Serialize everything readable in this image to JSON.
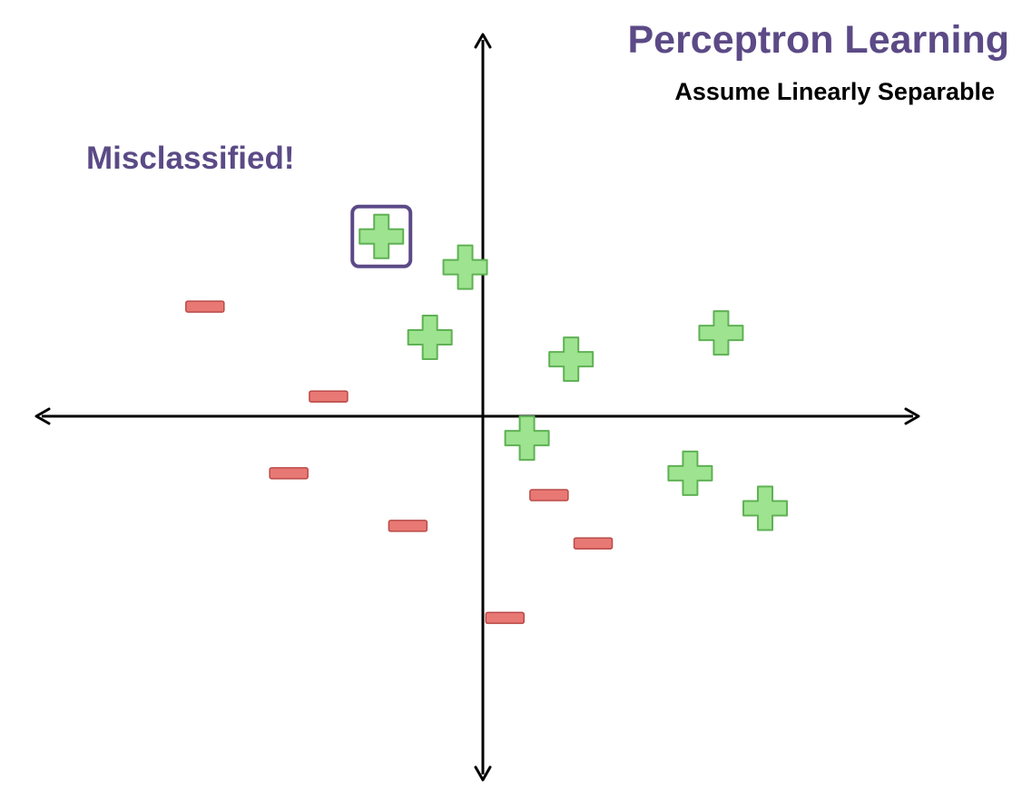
{
  "title": "Perceptron Learning",
  "subtitle": "Assume Linearly Separable",
  "callout": "Misclassified!",
  "colors": {
    "accent": "#5b4a86",
    "positive_fill": "#9ee38f",
    "positive_stroke": "#5fb154",
    "negative_fill": "#e87873",
    "negative_stroke": "#b94a47",
    "axis": "#000000"
  },
  "chart_data": {
    "type": "scatter",
    "xlim": [
      -10,
      10
    ],
    "ylim": [
      -8.5,
      8.5
    ],
    "grid": false,
    "axes": "cartesian, through origin, arrows on both ends, no tick labels",
    "series": [
      {
        "name": "positive",
        "marker": "plus",
        "points": [
          {
            "x": -2.3,
            "y": 4.1,
            "misclassified": true
          },
          {
            "x": -0.4,
            "y": 3.4
          },
          {
            "x": -1.2,
            "y": 1.8
          },
          {
            "x": 2.0,
            "y": 1.3
          },
          {
            "x": 5.4,
            "y": 1.9
          },
          {
            "x": 1.0,
            "y": -0.5
          },
          {
            "x": 4.7,
            "y": -1.3
          },
          {
            "x": 6.4,
            "y": -2.1
          }
        ]
      },
      {
        "name": "negative",
        "marker": "minus",
        "points": [
          {
            "x": -6.3,
            "y": 2.5
          },
          {
            "x": -3.5,
            "y": 0.45
          },
          {
            "x": -4.4,
            "y": -1.3
          },
          {
            "x": -1.7,
            "y": -2.5
          },
          {
            "x": 1.5,
            "y": -1.8
          },
          {
            "x": 2.5,
            "y": -2.9
          },
          {
            "x": 0.5,
            "y": -4.6
          }
        ]
      }
    ]
  }
}
